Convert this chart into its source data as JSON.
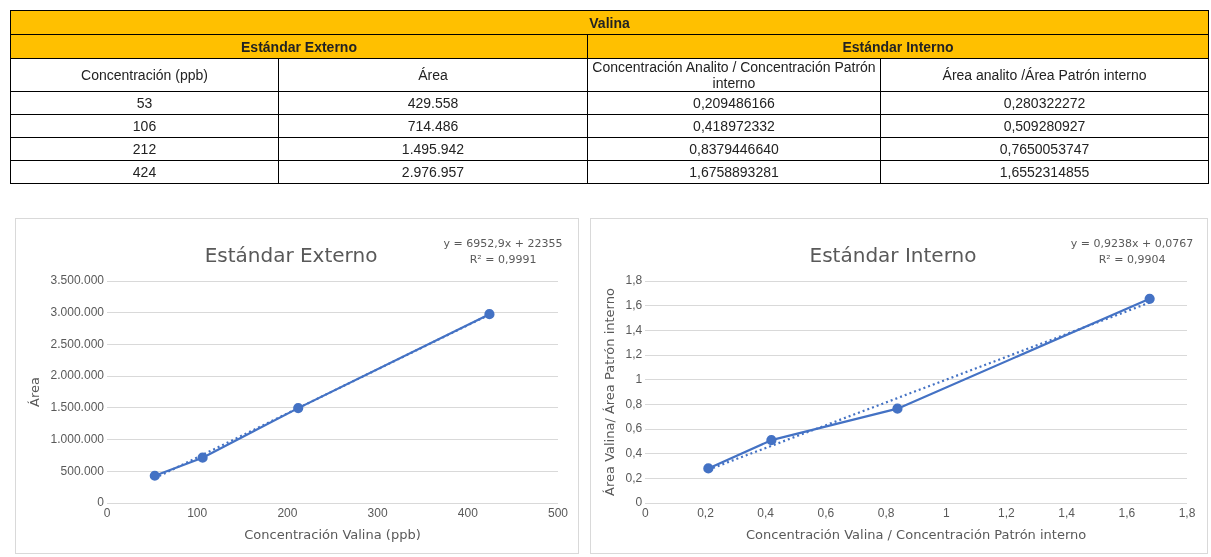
{
  "chart_data": [
    {
      "type": "other",
      "title": "Valina",
      "annotations": [
        "Estándar Externo",
        "Estándar Interno",
        "Concentración (ppb)",
        "Área",
        "Concentración Analito / Concentración Patrón interno",
        "Área analito /Área Patrón interno",
        "53",
        "429.558",
        "0,209486166",
        "0,280322272",
        "106",
        "714.486",
        "0,418972332",
        "0,509280927",
        "212",
        "1.495.942",
        "0,8379446640",
        "0,7650053747",
        "424",
        "2.976.957",
        "1,6758893281",
        "1,6552314855"
      ]
    },
    {
      "type": "scatter",
      "title": "Estándar Externo",
      "xlabel": "Concentración Valina (ppb)",
      "ylabel": "Área",
      "annotations": [
        "y = 6952,9x + 22355",
        "R² = 0,9991"
      ],
      "grid": "y",
      "legend": false,
      "xlim": [
        0,
        500
      ],
      "xticks": [
        0,
        100,
        200,
        300,
        400,
        500
      ],
      "ylim": [
        0,
        3500000
      ],
      "yticks": [
        {
          "value": 0,
          "label": "0"
        },
        {
          "value": 500000,
          "label": "500.000"
        },
        {
          "value": 1000000,
          "label": "1.000.000"
        },
        {
          "value": 1500000,
          "label": "1.500.000"
        },
        {
          "value": 2000000,
          "label": "2.000.000"
        },
        {
          "value": 2500000,
          "label": "2.500.000"
        },
        {
          "value": 3000000,
          "label": "3.000.000"
        },
        {
          "value": 3500000,
          "label": "3.500.000"
        }
      ],
      "series": [
        {
          "type": "line",
          "color": "#4472c4",
          "marker": "circle",
          "line_style": "solid",
          "x": [
            53,
            106,
            212,
            424
          ],
          "values": [
            429558,
            714486,
            1495942,
            2976957
          ]
        },
        {
          "type": "line",
          "color": "#4472c4",
          "marker": "none",
          "line_style": "dotted",
          "x": [
            53,
            424
          ],
          "values": [
            390860,
            2970385
          ]
        }
      ]
    },
    {
      "type": "scatter",
      "title": "Estándar Interno",
      "xlabel": "Concentración Valina / Concentración Patrón interno",
      "ylabel": "Área Valina/ Área Patrón interno",
      "annotations": [
        "y = 0,9238x + 0,0767",
        "R² = 0,9904"
      ],
      "grid": "y",
      "legend": false,
      "xlim": [
        0,
        1.8
      ],
      "xticks": [
        0,
        {
          "value": 0.2,
          "label": "0,2"
        },
        {
          "value": 0.4,
          "label": "0,4"
        },
        {
          "value": 0.6,
          "label": "0,6"
        },
        {
          "value": 0.8,
          "label": "0,8"
        },
        1,
        {
          "value": 1.2,
          "label": "1,2"
        },
        {
          "value": 1.4,
          "label": "1,4"
        },
        {
          "value": 1.6,
          "label": "1,6"
        },
        {
          "value": 1.8,
          "label": "1,8"
        }
      ],
      "ylim": [
        0,
        1.8
      ],
      "yticks": [
        0,
        {
          "value": 0.2,
          "label": "0,2"
        },
        {
          "value": 0.4,
          "label": "0,4"
        },
        {
          "value": 0.6,
          "label": "0,6"
        },
        {
          "value": 0.8,
          "label": "0,8"
        },
        1,
        {
          "value": 1.2,
          "label": "1,2"
        },
        {
          "value": 1.4,
          "label": "1,4"
        },
        {
          "value": 1.6,
          "label": "1,6"
        },
        {
          "value": 1.8,
          "label": "1,8"
        }
      ],
      "series": [
        {
          "type": "line",
          "color": "#4472c4",
          "marker": "circle",
          "line_style": "solid",
          "x": [
            0.2095,
            0.419,
            0.8379,
            1.6759
          ],
          "values": [
            0.2803,
            0.5093,
            0.765,
            1.6552
          ]
        },
        {
          "type": "line",
          "color": "#4472c4",
          "marker": "none",
          "line_style": "dotted",
          "x": [
            0.2095,
            1.6759
          ],
          "values": [
            0.2702,
            1.6249
          ]
        }
      ]
    }
  ]
}
